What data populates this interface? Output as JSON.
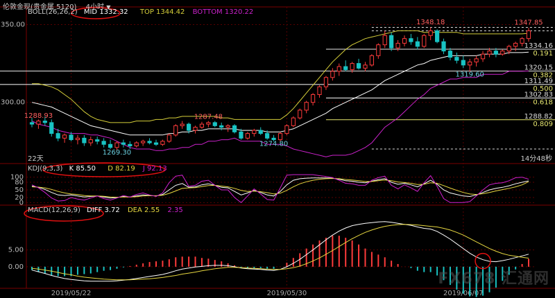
{
  "header": {
    "instrument": "伦敦金现(贵金属 5120)",
    "period": "4小时",
    "dropdown_icon": "chevron-down-icon"
  },
  "boll_legend": {
    "label": "BOLL(26,26,2)",
    "mid": "MID 1332.32",
    "top": "TOP 1344.42",
    "bottom": "BOTTOM 1320.22"
  },
  "kdj_legend": {
    "label": "KDJ(9,3,3)",
    "k": "K 85.50",
    "d": "D 82.19",
    "j": "J 92.13"
  },
  "macd_legend": {
    "label": "MACD(12,26,9)",
    "diff": "DIFF 3.72",
    "dea": "DEA 2.55",
    "macd": "2.35"
  },
  "price_annotations": {
    "high1": "1348.18",
    "high2": "1347.85",
    "low_mid": "1319.60",
    "left_high": "1288.93",
    "mid_high": "1287.48",
    "low1": "1269.30",
    "low2": "1274.80"
  },
  "fib_levels": [
    {
      "price": "1334.16",
      "ratio": "0.191"
    },
    {
      "price": "1320.15",
      "ratio": "0.382"
    },
    {
      "price": "1311.49",
      "ratio": "0.500"
    },
    {
      "price": "1302.83",
      "ratio": "0.618"
    },
    {
      "price": "1288.82",
      "ratio": "0.809"
    }
  ],
  "misc_labels": {
    "days": "22天",
    "hours": "14分48秒"
  },
  "watermark": "FX678 汇通网",
  "colors": {
    "up": "#ff3b3b",
    "down": "#19c3c3",
    "boll_mid": "#ffffff",
    "boll_top": "#d6cf3a",
    "boll_bottom": "#cc22cc",
    "k": "#ffffff",
    "d": "#e8d840",
    "j": "#d020d0",
    "ellipse": "#e01010"
  },
  "chart_data": [
    {
      "type": "candlestick",
      "title": "伦敦金现 4小时",
      "y_ticks": [
        1350.0,
        1300.0
      ],
      "ylim": [
        1262,
        1356
      ],
      "x_ticks": [
        "2019/05/22",
        "2019/05/30",
        "2019/06/07"
      ],
      "ohlc": [
        [
          1287,
          1290,
          1284,
          1286
        ],
        [
          1286,
          1289,
          1283,
          1288
        ],
        [
          1288,
          1291,
          1285,
          1287
        ],
        [
          1287,
          1289,
          1278,
          1280
        ],
        [
          1280,
          1283,
          1275,
          1277
        ],
        [
          1277,
          1280,
          1274,
          1279
        ],
        [
          1279,
          1281,
          1275,
          1276
        ],
        [
          1276,
          1279,
          1273,
          1277
        ],
        [
          1277,
          1279,
          1272,
          1274
        ],
        [
          1274,
          1278,
          1272,
          1276
        ],
        [
          1276,
          1278,
          1273,
          1275
        ],
        [
          1275,
          1277,
          1271,
          1273
        ],
        [
          1273,
          1276,
          1270,
          1271
        ],
        [
          1271,
          1275,
          1269.3,
          1274
        ],
        [
          1274,
          1276,
          1271,
          1273
        ],
        [
          1273,
          1275,
          1270,
          1272
        ],
        [
          1272,
          1275,
          1271,
          1274
        ],
        [
          1274,
          1276,
          1272,
          1275
        ],
        [
          1275,
          1277,
          1273,
          1274
        ],
        [
          1274,
          1276,
          1272,
          1273
        ],
        [
          1273,
          1276,
          1272,
          1275
        ],
        [
          1275,
          1280,
          1274,
          1279
        ],
        [
          1279,
          1286,
          1278,
          1285
        ],
        [
          1285,
          1288,
          1283,
          1286
        ],
        [
          1286,
          1287,
          1280,
          1282
        ],
        [
          1282,
          1285,
          1280,
          1284
        ],
        [
          1284,
          1287.5,
          1283,
          1286
        ],
        [
          1286,
          1288,
          1284,
          1287
        ],
        [
          1287,
          1288,
          1284,
          1285
        ],
        [
          1285,
          1287,
          1282,
          1284
        ],
        [
          1284,
          1286,
          1281,
          1285
        ],
        [
          1285,
          1286,
          1280,
          1281
        ],
        [
          1281,
          1283,
          1276,
          1277
        ],
        [
          1277,
          1281,
          1276,
          1280
        ],
        [
          1280,
          1283,
          1278,
          1282
        ],
        [
          1282,
          1284,
          1279,
          1280
        ],
        [
          1280,
          1282,
          1276,
          1277
        ],
        [
          1277,
          1279,
          1274.8,
          1276
        ],
        [
          1276,
          1281,
          1275,
          1280
        ],
        [
          1280,
          1286,
          1279,
          1285
        ],
        [
          1285,
          1291,
          1284,
          1290
        ],
        [
          1290,
          1296,
          1289,
          1295
        ],
        [
          1295,
          1301,
          1293,
          1300
        ],
        [
          1300,
          1306,
          1298,
          1305
        ],
        [
          1305,
          1311,
          1303,
          1310
        ],
        [
          1310,
          1317,
          1308,
          1316
        ],
        [
          1316,
          1322,
          1314,
          1320
        ],
        [
          1320,
          1325,
          1317,
          1323
        ],
        [
          1323,
          1327,
          1320,
          1321
        ],
        [
          1321,
          1326,
          1319,
          1325
        ],
        [
          1325,
          1328,
          1321,
          1322
        ],
        [
          1322,
          1326,
          1320,
          1324
        ],
        [
          1324,
          1331,
          1323,
          1330
        ],
        [
          1330,
          1338,
          1328,
          1337
        ],
        [
          1337,
          1346,
          1335,
          1343
        ],
        [
          1343,
          1345,
          1333,
          1335
        ],
        [
          1335,
          1340,
          1333,
          1338
        ],
        [
          1338,
          1343,
          1336,
          1341
        ],
        [
          1341,
          1344,
          1337,
          1339
        ],
        [
          1339,
          1342,
          1334,
          1336
        ],
        [
          1336,
          1344,
          1335,
          1343
        ],
        [
          1343,
          1348.2,
          1340,
          1346
        ],
        [
          1346,
          1347,
          1338,
          1339
        ],
        [
          1339,
          1341,
          1331,
          1333
        ],
        [
          1333,
          1335,
          1327,
          1329
        ],
        [
          1329,
          1332,
          1325,
          1327
        ],
        [
          1327,
          1330,
          1322,
          1324
        ],
        [
          1324,
          1328,
          1319.6,
          1326
        ],
        [
          1326,
          1330,
          1323,
          1328
        ],
        [
          1328,
          1333,
          1326,
          1331
        ],
        [
          1331,
          1335,
          1329,
          1333
        ],
        [
          1333,
          1335,
          1329,
          1331
        ],
        [
          1331,
          1334,
          1330,
          1333
        ],
        [
          1333,
          1337,
          1331,
          1336
        ],
        [
          1336,
          1339,
          1333,
          1338
        ],
        [
          1338,
          1342,
          1336,
          1341
        ],
        [
          1341,
          1347.9,
          1339,
          1346
        ]
      ],
      "series": [
        {
          "name": "MID",
          "values": [
            1300,
            1299,
            1298,
            1297,
            1295,
            1293,
            1291,
            1289,
            1287,
            1285,
            1284,
            1283,
            1282,
            1281,
            1280,
            1279,
            1279,
            1279,
            1279,
            1279,
            1279,
            1280,
            1280,
            1281,
            1281,
            1282,
            1282,
            1283,
            1283,
            1283,
            1283,
            1283,
            1282,
            1282,
            1282,
            1282,
            1281,
            1281,
            1281,
            1282,
            1283,
            1285,
            1287,
            1289,
            1291,
            1293,
            1296,
            1298,
            1300,
            1302,
            1304,
            1306,
            1308,
            1311,
            1314,
            1316,
            1318,
            1320,
            1322,
            1324,
            1325,
            1327,
            1328,
            1329,
            1330,
            1330,
            1330,
            1330,
            1330,
            1331,
            1331,
            1331,
            1331,
            1332,
            1332,
            1332,
            1332.3
          ]
        },
        {
          "name": "TOP",
          "values": [
            1312,
            1312,
            1311,
            1310,
            1308,
            1305,
            1302,
            1298,
            1294,
            1291,
            1289,
            1288,
            1287,
            1287,
            1287,
            1287,
            1288,
            1288,
            1288,
            1289,
            1289,
            1290,
            1290,
            1291,
            1291,
            1291,
            1291,
            1291,
            1291,
            1290,
            1290,
            1289,
            1289,
            1289,
            1289,
            1289,
            1289,
            1289,
            1289,
            1292,
            1296,
            1301,
            1306,
            1311,
            1316,
            1321,
            1326,
            1330,
            1334,
            1337,
            1339,
            1341,
            1342,
            1343,
            1344,
            1345,
            1346,
            1346,
            1346,
            1346,
            1345,
            1345,
            1345,
            1345,
            1345,
            1345,
            1344,
            1344,
            1344,
            1344,
            1344,
            1344,
            1344,
            1344,
            1344,
            1344,
            1344.4
          ]
        },
        {
          "name": "BOTTOM",
          "values": [
            1288,
            1286,
            1285,
            1284,
            1282,
            1281,
            1280,
            1280,
            1280,
            1279,
            1279,
            1278,
            1277,
            1275,
            1273,
            1271,
            1270,
            1270,
            1270,
            1269,
            1269,
            1270,
            1270,
            1271,
            1271,
            1273,
            1273,
            1275,
            1275,
            1276,
            1276,
            1277,
            1275,
            1275,
            1275,
            1275,
            1273,
            1273,
            1273,
            1272,
            1270,
            1269,
            1268,
            1267,
            1266,
            1265,
            1266,
            1266,
            1266,
            1267,
            1269,
            1271,
            1274,
            1279,
            1284,
            1287,
            1290,
            1294,
            1298,
            1302,
            1305,
            1309,
            1311,
            1313,
            1315,
            1315,
            1316,
            1316,
            1316,
            1318,
            1318,
            1318,
            1318,
            1320,
            1320,
            1320,
            1320.2
          ]
        }
      ]
    },
    {
      "type": "line",
      "title": "KDJ(9,3,3)",
      "y_ticks": [
        100,
        80,
        50,
        20,
        0
      ],
      "ylim": [
        -10,
        110
      ],
      "series": [
        {
          "name": "K",
          "values": [
            65,
            60,
            52,
            40,
            30,
            28,
            30,
            26,
            22,
            24,
            26,
            22,
            18,
            20,
            24,
            22,
            26,
            30,
            28,
            26,
            32,
            50,
            68,
            75,
            60,
            62,
            70,
            74,
            68,
            60,
            58,
            44,
            30,
            38,
            48,
            40,
            30,
            26,
            44,
            70,
            88,
            94,
            96,
            97,
            97,
            97,
            96,
            92,
            86,
            84,
            80,
            78,
            84,
            90,
            94,
            80,
            72,
            76,
            70,
            62,
            74,
            88,
            72,
            50,
            38,
            32,
            26,
            24,
            30,
            40,
            50,
            56,
            60,
            66,
            74,
            80,
            85.5
          ]
        },
        {
          "name": "D",
          "values": [
            62,
            61,
            58,
            52,
            44,
            38,
            34,
            32,
            28,
            26,
            26,
            25,
            22,
            21,
            22,
            22,
            23,
            26,
            27,
            27,
            29,
            36,
            46,
            56,
            58,
            59,
            63,
            67,
            68,
            65,
            62,
            56,
            48,
            44,
            45,
            43,
            39,
            34,
            37,
            48,
            62,
            74,
            82,
            88,
            92,
            94,
            95,
            94,
            91,
            89,
            86,
            83,
            83,
            86,
            89,
            86,
            81,
            79,
            76,
            71,
            72,
            78,
            76,
            67,
            57,
            48,
            40,
            34,
            32,
            35,
            40,
            46,
            51,
            56,
            62,
            70,
            82.2
          ]
        },
        {
          "name": "J",
          "values": [
            70,
            58,
            40,
            18,
            6,
            8,
            20,
            14,
            10,
            18,
            26,
            16,
            10,
            18,
            28,
            22,
            32,
            38,
            30,
            24,
            38,
            78,
            104,
            108,
            64,
            68,
            84,
            88,
            68,
            50,
            50,
            20,
            0,
            26,
            54,
            34,
            12,
            10,
            58,
            108,
            110,
            110,
            110,
            110,
            106,
            103,
            98,
            88,
            76,
            74,
            68,
            68,
            88,
            98,
            104,
            68,
            54,
            70,
            58,
            44,
            78,
            106,
            64,
            16,
            0,
            0,
            0,
            4,
            26,
            50,
            70,
            76,
            78,
            86,
            98,
            100,
            92.1
          ]
        }
      ]
    },
    {
      "type": "bar+line",
      "title": "MACD(12,26,9)",
      "y_ticks": [
        5.0,
        0.0
      ],
      "ylim": [
        -6,
        15
      ],
      "series": [
        {
          "name": "DIFF",
          "values": [
            -1,
            -1.5,
            -2,
            -2.6,
            -3.1,
            -3.5,
            -3.8,
            -4,
            -4.2,
            -4.3,
            -4.3,
            -4.3,
            -4.3,
            -4.2,
            -4,
            -3.8,
            -3.5,
            -3.2,
            -2.9,
            -2.6,
            -2.3,
            -1.8,
            -1.2,
            -0.7,
            -0.4,
            -0.1,
            0.1,
            0.3,
            0.4,
            0.4,
            0.3,
            0,
            -0.4,
            -0.6,
            -0.7,
            -0.8,
            -1,
            -1.1,
            -0.8,
            0,
            1,
            2.2,
            3.6,
            5,
            6.5,
            8,
            9.4,
            10.6,
            11.5,
            12.2,
            12.6,
            12.9,
            13.1,
            13.3,
            13.4,
            13.2,
            12.9,
            12.6,
            12.3,
            11.8,
            11.4,
            11.2,
            10.5,
            9.4,
            8.2,
            6.8,
            5.4,
            4,
            2.9,
            2.1,
            1.6,
            1.5,
            1.8,
            2.2,
            2.7,
            3.2,
            3.72
          ]
        },
        {
          "name": "DEA",
          "values": [
            -0.5,
            -0.7,
            -1,
            -1.3,
            -1.7,
            -2.1,
            -2.4,
            -2.8,
            -3.1,
            -3.3,
            -3.5,
            -3.7,
            -3.8,
            -3.9,
            -3.9,
            -3.9,
            -3.8,
            -3.7,
            -3.6,
            -3.4,
            -3.2,
            -2.9,
            -2.6,
            -2.2,
            -1.9,
            -1.6,
            -1.2,
            -0.9,
            -0.6,
            -0.4,
            -0.2,
            -0.2,
            -0.3,
            -0.4,
            -0.5,
            -0.6,
            -0.7,
            -0.8,
            -0.8,
            -0.6,
            -0.3,
            0.2,
            0.9,
            1.7,
            2.6,
            3.7,
            4.8,
            6,
            7.2,
            8.3,
            9.3,
            10.2,
            10.9,
            11.5,
            12,
            12.3,
            12.5,
            12.6,
            12.5,
            12.4,
            12.2,
            12,
            11.8,
            11.4,
            10.9,
            10.2,
            9.4,
            8.4,
            7.4,
            6.4,
            5.4,
            4.6,
            3.9,
            3.4,
            3.1,
            2.8,
            2.55
          ]
        }
      ]
    }
  ]
}
